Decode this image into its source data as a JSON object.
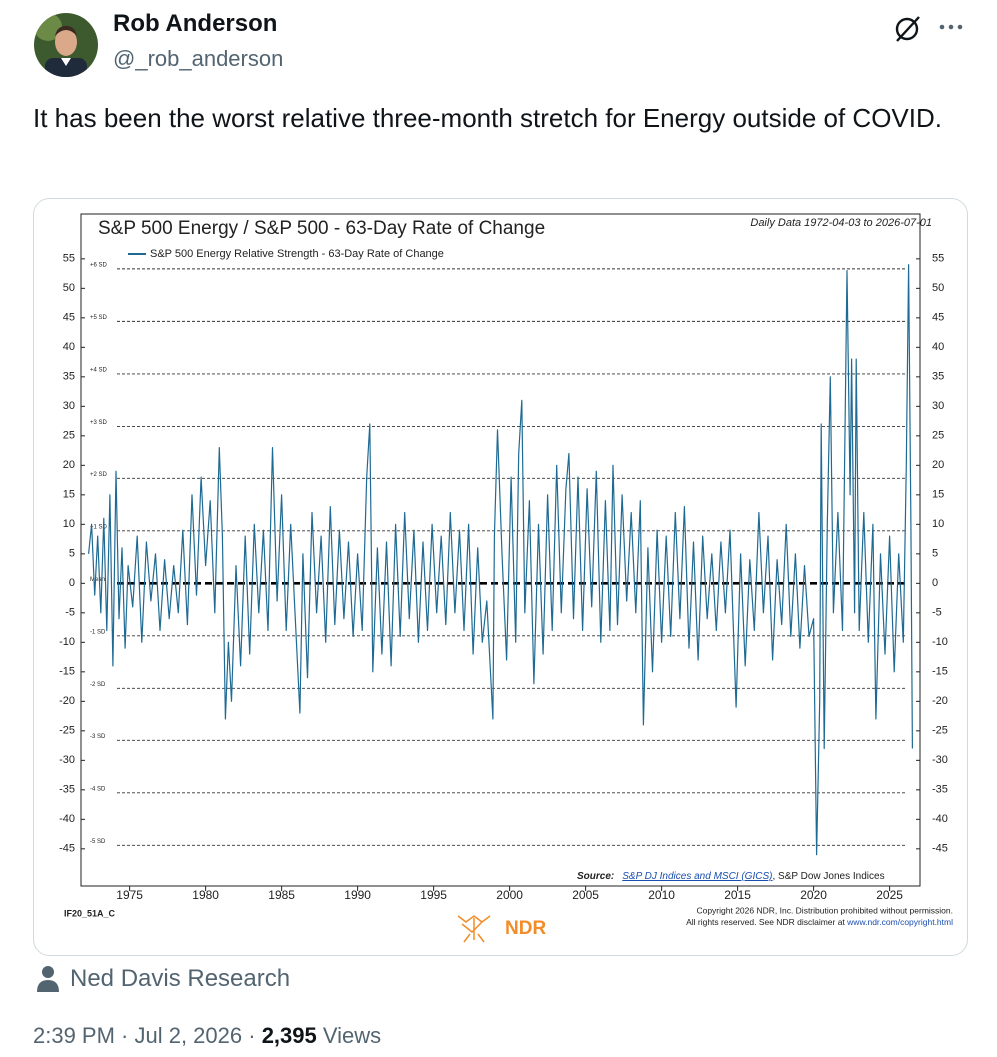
{
  "tweet": {
    "author": {
      "name": "Rob Anderson",
      "handle": "@_rob_anderson"
    },
    "text": "It has been the worst relative three-month stretch for Energy outside of COVID.",
    "source_label": "Ned Davis Research",
    "timestamp": "2:39 PM · Jul 2, 2026 ·",
    "views_count": "2,395",
    "views_label": "Views"
  },
  "chart_data": {
    "type": "line",
    "title": "S&P 500 Energy / S&P 500 - 63-Day Rate of Change",
    "subtitle": "Daily Data 1972-04-03 to 2026-07-01",
    "x": [
      1972.3,
      1972.5,
      1972.7,
      1972.9,
      1973.1,
      1973.3,
      1973.5,
      1973.7,
      1973.9,
      1974.1,
      1974.3,
      1974.5,
      1974.7,
      1974.9,
      1975.2,
      1975.5,
      1975.8,
      1976.1,
      1976.4,
      1976.7,
      1977.0,
      1977.3,
      1977.6,
      1977.9,
      1978.2,
      1978.5,
      1978.8,
      1979.1,
      1979.4,
      1979.7,
      1980.0,
      1980.3,
      1980.6,
      1980.9,
      1981.1,
      1981.3,
      1981.5,
      1981.7,
      1982.0,
      1982.3,
      1982.6,
      1982.9,
      1983.2,
      1983.5,
      1983.8,
      1984.1,
      1984.4,
      1984.7,
      1985.0,
      1985.3,
      1985.6,
      1985.9,
      1986.2,
      1986.4,
      1986.7,
      1987.0,
      1987.3,
      1987.6,
      1987.9,
      1988.2,
      1988.5,
      1988.8,
      1989.1,
      1989.4,
      1989.7,
      1990.0,
      1990.3,
      1990.6,
      1990.8,
      1991.0,
      1991.3,
      1991.6,
      1991.9,
      1992.2,
      1992.5,
      1992.8,
      1993.1,
      1993.4,
      1993.7,
      1994.0,
      1994.3,
      1994.6,
      1994.9,
      1995.2,
      1995.5,
      1995.8,
      1996.1,
      1996.4,
      1996.7,
      1997.0,
      1997.3,
      1997.6,
      1997.9,
      1998.2,
      1998.5,
      1998.9,
      1999.0,
      1999.2,
      1999.5,
      1999.8,
      2000.1,
      2000.4,
      2000.6,
      2000.8,
      2001.0,
      2001.3,
      2001.6,
      2001.9,
      2002.2,
      2002.5,
      2002.8,
      2003.1,
      2003.4,
      2003.7,
      2003.9,
      2004.2,
      2004.5,
      2004.8,
      2005.1,
      2005.4,
      2005.7,
      2006.0,
      2006.3,
      2006.6,
      2006.8,
      2007.1,
      2007.4,
      2007.7,
      2008.0,
      2008.3,
      2008.6,
      2008.8,
      2009.1,
      2009.4,
      2009.7,
      2010.0,
      2010.3,
      2010.6,
      2010.9,
      2011.2,
      2011.5,
      2011.8,
      2012.1,
      2012.4,
      2012.7,
      2013.0,
      2013.3,
      2013.6,
      2013.9,
      2014.2,
      2014.5,
      2014.9,
      2015.2,
      2015.5,
      2015.8,
      2016.1,
      2016.4,
      2016.7,
      2017.0,
      2017.3,
      2017.6,
      2017.9,
      2018.2,
      2018.5,
      2018.8,
      2019.1,
      2019.4,
      2019.7,
      2020.0,
      2020.2,
      2020.4,
      2020.5,
      2020.7,
      2020.9,
      2021.1,
      2021.3,
      2021.6,
      2021.9,
      2022.2,
      2022.4,
      2022.5,
      2022.7,
      2022.8,
      2023.0,
      2023.3,
      2023.6,
      2023.9,
      2024.1,
      2024.4,
      2024.7,
      2025.0,
      2025.3,
      2025.6,
      2025.9,
      2026.1,
      2026.25,
      2026.4,
      2026.5
    ],
    "series": [
      {
        "name": "S&P 500 Energy Relative Strength - 63-Day Rate of Change",
        "color": "#1f6a93",
        "values": [
          5,
          10,
          -2,
          8,
          -5,
          11,
          -8,
          15,
          -14,
          19,
          -6,
          6,
          -11,
          3,
          -4,
          8,
          -10,
          7,
          -3,
          5,
          -8,
          4,
          -6,
          3,
          -5,
          9,
          -7,
          15,
          -2,
          18,
          3,
          14,
          -5,
          23,
          8,
          -23,
          -10,
          -20,
          3,
          -14,
          8,
          -12,
          10,
          -5,
          9,
          -8,
          23,
          -3,
          15,
          -8,
          10,
          -6,
          -22,
          5,
          -16,
          12,
          -5,
          8,
          -10,
          13,
          -7,
          9,
          -6,
          7,
          -9,
          5,
          -8,
          18,
          27,
          -15,
          6,
          -12,
          7,
          -14,
          10,
          -9,
          12,
          -6,
          9,
          -10,
          7,
          -8,
          10,
          -5,
          8,
          -7,
          12,
          -5,
          9,
          -8,
          10,
          -12,
          6,
          -10,
          -3,
          -23,
          8,
          26,
          5,
          -13,
          18,
          -10,
          22,
          31,
          -5,
          14,
          -17,
          10,
          -12,
          15,
          -8,
          20,
          -5,
          16,
          22,
          -6,
          18,
          -8,
          16,
          -4,
          19,
          -10,
          14,
          -8,
          20,
          -7,
          15,
          -3,
          12,
          -5,
          14,
          -24,
          6,
          -15,
          9,
          -10,
          8,
          -9,
          12,
          -6,
          13,
          -11,
          7,
          -13,
          8,
          -6,
          5,
          -8,
          7,
          -5,
          9,
          -21,
          5,
          -14,
          4,
          -8,
          12,
          -5,
          8,
          -13,
          4,
          -7,
          10,
          -9,
          5,
          -11,
          3,
          -9,
          -6,
          -46,
          -20,
          27,
          -28,
          10,
          35,
          -5,
          12,
          -8,
          53,
          15,
          38,
          -5,
          38,
          -8,
          12,
          -10,
          10,
          -23,
          5,
          -12,
          8,
          -15,
          5,
          -10,
          20,
          54,
          10,
          -28
        ]
      }
    ],
    "xlim": [
      1971.8,
      2027.0
    ],
    "xticks": [
      1975,
      1980,
      1985,
      1990,
      1995,
      2000,
      2005,
      2010,
      2015,
      2020,
      2025
    ],
    "ylim": [
      -51.3,
      62.6
    ],
    "yticks": [
      -45,
      -40,
      -35,
      -30,
      -25,
      -20,
      -15,
      -10,
      -5,
      0,
      5,
      10,
      15,
      20,
      25,
      30,
      35,
      40,
      45,
      50,
      55
    ],
    "reference_lines": [
      {
        "label": "+6 SD",
        "value": 53.3
      },
      {
        "label": "+5 SD",
        "value": 44.4
      },
      {
        "label": "+4 SD",
        "value": 35.5
      },
      {
        "label": "+3 SD",
        "value": 26.6
      },
      {
        "label": "+2 SD",
        "value": 17.8
      },
      {
        "label": "+1 SD",
        "value": 8.9
      },
      {
        "label": "Mean",
        "value": 0
      },
      {
        "label": "-1 SD",
        "value": -8.9
      },
      {
        "label": "-2 SD",
        "value": -17.8
      },
      {
        "label": "-3 SD",
        "value": -26.6
      },
      {
        "label": "-4 SD",
        "value": -35.5
      },
      {
        "label": "-5 SD",
        "value": -44.4
      }
    ],
    "grid": false,
    "legend": "top-left",
    "source": {
      "label": "Source:",
      "link": "S&P DJ Indices and MSCI (GICS)",
      "text": ", S&P Dow Jones Indices"
    },
    "chart_id": "IF20_51A_C",
    "brand": "NDR",
    "copyright": {
      "line1": "Copyright 2026 NDR, Inc. Distribution prohibited without permission.",
      "line2": "All rights reserved. See NDR disclaimer at ",
      "link": "www.ndr.com/copyright.html"
    }
  }
}
